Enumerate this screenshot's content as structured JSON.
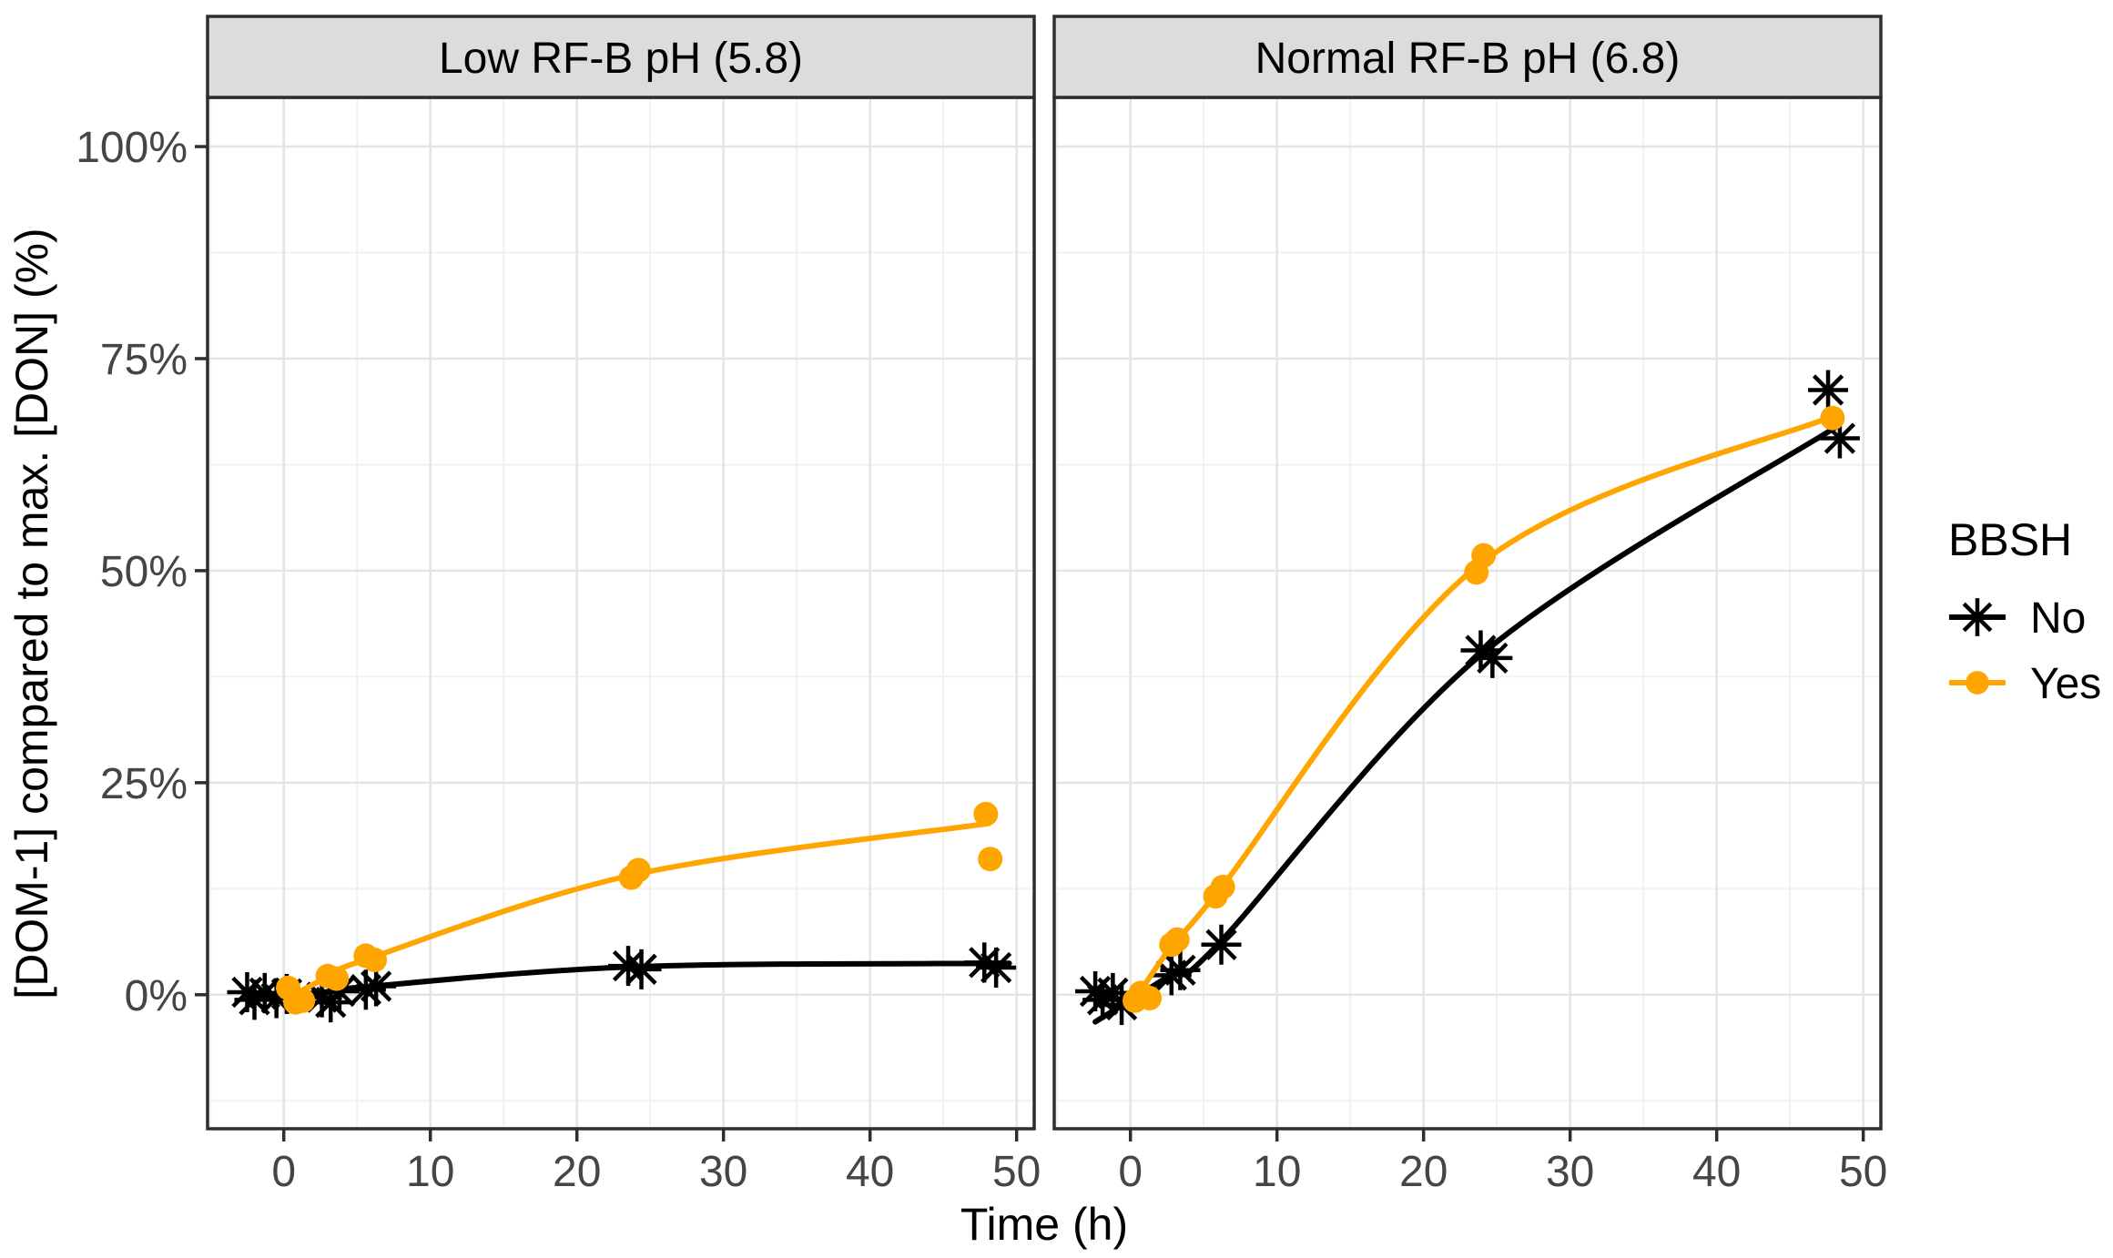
{
  "chart_data": {
    "type": "scatter",
    "subtype": "faceted scatter with fitted lines (ggplot style)",
    "title": "",
    "xlabel": "Time (h)",
    "ylabel": "[DOM-1] compared to max. [DON] (%)",
    "xlim": [
      -5.2,
      51.2
    ],
    "ylim": [
      -15.8,
      105.8
    ],
    "x_ticks": [
      0,
      10,
      20,
      30,
      40,
      50
    ],
    "x_tick_labels": [
      "0",
      "10",
      "20",
      "30",
      "40",
      "50"
    ],
    "x_minor_ticks": [
      -5,
      5,
      15,
      25,
      35,
      45
    ],
    "y_ticks": [
      0,
      25,
      50,
      75,
      100
    ],
    "y_tick_labels": [
      "0%",
      "25%",
      "50%",
      "75%",
      "100%"
    ],
    "y_minor_ticks": [
      -12.5,
      12.5,
      37.5,
      62.5,
      87.5
    ],
    "grid": {
      "major": true,
      "minor": true
    },
    "legend": {
      "title": "BBSH",
      "position": "right",
      "entries": [
        {
          "label": "No",
          "marker": "asterisk",
          "color": "#000000"
        },
        {
          "label": "Yes",
          "marker": "circle",
          "color": "#FFA500"
        }
      ]
    },
    "facets": [
      {
        "label": "Low RF-B pH (5.8)",
        "series": [
          {
            "name": "No",
            "marker": "asterisk",
            "color": "#000000",
            "line": [
              [
                -2.5,
                -0.1
              ],
              [
                0,
                0
              ],
              [
                3,
                0.3
              ],
              [
                6,
                1.0
              ],
              [
                24,
                3.3
              ],
              [
                49.5,
                3.7
              ]
            ],
            "points": [
              [
                -2.5,
                0.3
              ],
              [
                -2.0,
                -0.6
              ],
              [
                -1.3,
                0.2
              ],
              [
                -0.5,
                -0.4
              ],
              [
                0.2,
                0.1
              ],
              [
                2.6,
                -0.3
              ],
              [
                3.2,
                -0.9
              ],
              [
                3.8,
                0.4
              ],
              [
                5.6,
                0.6
              ],
              [
                6.3,
                1.0
              ],
              [
                23.5,
                3.4
              ],
              [
                24.4,
                3.0
              ],
              [
                47.8,
                3.8
              ],
              [
                48.6,
                3.2
              ]
            ]
          },
          {
            "name": "Yes",
            "marker": "circle",
            "color": "#FFA500",
            "line": [
              [
                0.3,
                -0.4
              ],
              [
                3,
                2.1
              ],
              [
                6,
                4.4
              ],
              [
                24,
                14.2
              ],
              [
                48.1,
                20.2
              ]
            ],
            "points": [
              [
                0.3,
                0.8
              ],
              [
                0.8,
                -0.9
              ],
              [
                1.3,
                -0.7
              ],
              [
                3.0,
                2.2
              ],
              [
                3.6,
                1.9
              ],
              [
                5.6,
                4.6
              ],
              [
                6.2,
                4.1
              ],
              [
                23.7,
                13.8
              ],
              [
                24.2,
                14.7
              ],
              [
                47.9,
                21.3
              ],
              [
                48.2,
                16.0
              ]
            ]
          }
        ]
      },
      {
        "label": "Normal RF-B pH (6.8)",
        "series": [
          {
            "name": "No",
            "marker": "asterisk",
            "color": "#000000",
            "line": [
              [
                -2.4,
                -3.2
              ],
              [
                3,
                2.6
              ],
              [
                6,
                6.0
              ],
              [
                24,
                40.2
              ],
              [
                48.2,
                67.0
              ]
            ],
            "points": [
              [
                -2.4,
                0.4
              ],
              [
                -1.9,
                -0.6
              ],
              [
                -1.2,
                0.2
              ],
              [
                -0.6,
                -1.2
              ],
              [
                2.8,
                2.3
              ],
              [
                3.4,
                2.9
              ],
              [
                6.2,
                5.9
              ],
              [
                23.9,
                40.6
              ],
              [
                24.7,
                39.7
              ],
              [
                47.6,
                71.3
              ],
              [
                48.4,
                65.6
              ]
            ]
          },
          {
            "name": "Yes",
            "marker": "circle",
            "color": "#FFA500",
            "line": [
              [
                0.2,
                -0.8
              ],
              [
                3,
                6.2
              ],
              [
                6,
                12.2
              ],
              [
                24,
                51.0
              ],
              [
                47.9,
                68.2
              ]
            ],
            "points": [
              [
                0.3,
                -0.7
              ],
              [
                0.7,
                0.2
              ],
              [
                1.3,
                -0.4
              ],
              [
                2.8,
                5.9
              ],
              [
                3.2,
                6.5
              ],
              [
                5.8,
                11.6
              ],
              [
                6.3,
                12.7
              ],
              [
                23.6,
                49.8
              ],
              [
                24.1,
                51.8
              ],
              [
                47.9,
                68.0
              ]
            ]
          }
        ]
      }
    ]
  },
  "colors": {
    "series_no": "#000000",
    "series_yes": "#FFA500",
    "strip_bg": "#DCDCDC",
    "panel_border": "#2E2E2E",
    "grid_major": "#E4E4E4",
    "grid_minor": "#F1F1F1",
    "tick_label": "#454545",
    "text": "#000000",
    "background": "#FFFFFF"
  }
}
